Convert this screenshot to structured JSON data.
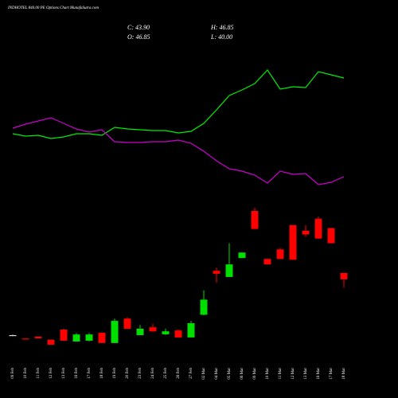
{
  "chart_data": {
    "type": "candlestick",
    "title": "INDHOTEL 840.00 PE Options Chart MunafaSutra.com",
    "ohlc_labels": [
      "C: 43.90",
      "H: 46.85",
      "O: 46.85",
      "L: 40.00"
    ],
    "categories": [
      "09 Feb",
      "10 Feb",
      "11 Feb",
      "12 Feb",
      "13 Feb",
      "16 Feb",
      "17 Feb",
      "18 Feb",
      "19 Feb",
      "20 Feb",
      "23 Feb",
      "24 Feb",
      "25 Feb",
      "26 Feb",
      "27 Feb",
      "02 Mar",
      "04 Mar",
      "05 Mar",
      "06 Mar",
      "09 Mar",
      "10 Mar",
      "11 Mar",
      "12 Mar",
      "13 Mar",
      "16 Mar",
      "17 Mar",
      "18 Mar"
    ],
    "open": [
      17.6,
      16.0,
      16.9,
      15.4,
      20.2,
      14.6,
      15.0,
      18.7,
      13.9,
      25.4,
      17.6,
      21.3,
      18.0,
      19.8,
      16.5,
      27.2,
      47.9,
      45.0,
      53.9,
      76.1,
      53.5,
      58.0,
      69.4,
      66.8,
      72.4,
      68.0,
      46.85
    ],
    "high": [
      17.8,
      16.0,
      16.9,
      15.4,
      20.6,
      18.6,
      18.6,
      18.7,
      25.4,
      26.1,
      22.4,
      22.8,
      20.6,
      20.2,
      24.3,
      38.7,
      49.4,
      60.9,
      56.5,
      77.6,
      53.5,
      58.7,
      69.4,
      69.4,
      73.5,
      68.0,
      46.85
    ],
    "low": [
      17.4,
      15.6,
      16.1,
      13.1,
      15.0,
      14.6,
      14.6,
      13.9,
      13.9,
      20.6,
      17.6,
      19.0,
      17.6,
      16.5,
      16.5,
      26.9,
      42.4,
      45.0,
      53.9,
      67.6,
      50.9,
      53.5,
      53.1,
      63.9,
      63.1,
      60.9,
      40.0
    ],
    "close": [
      17.6,
      15.8,
      16.1,
      13.1,
      15.0,
      17.9,
      17.9,
      13.9,
      24.3,
      20.6,
      20.6,
      19.4,
      19.4,
      16.5,
      23.2,
      34.3,
      46.5,
      50.9,
      56.5,
      67.6,
      50.9,
      53.5,
      53.1,
      65.0,
      63.1,
      60.9,
      43.9
    ],
    "up_color": "#00e000",
    "down_color": "#ff0000",
    "flat_color": "#dddddd",
    "lines": [
      {
        "color": "#00ee00",
        "values": [
          46,
          44.5,
          45,
          43,
          44,
          46,
          46,
          45,
          50,
          49,
          48.5,
          48,
          48,
          46.5,
          47.5,
          52.5,
          61,
          70,
          73.5,
          77.5,
          86,
          74,
          75.5,
          75,
          85,
          83,
          81
        ]
      },
      {
        "color": "#cc00cc",
        "values": [
          49.5,
          52,
          54,
          56,
          52.5,
          49,
          47,
          48.5,
          41,
          40.5,
          40.5,
          41,
          41,
          42,
          40,
          35,
          29,
          24,
          22.5,
          20,
          15,
          22.5,
          20.5,
          21,
          14,
          15.5,
          19
        ]
      }
    ]
  }
}
